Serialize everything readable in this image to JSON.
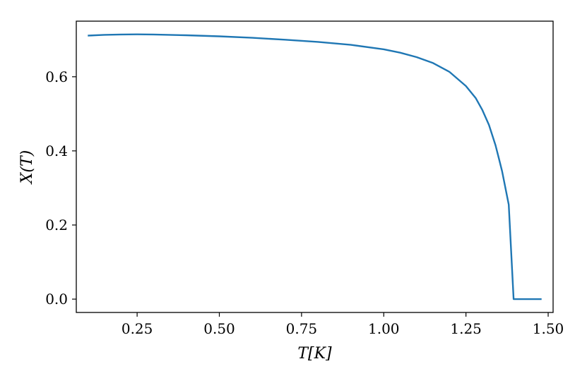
{
  "chart_data": {
    "type": "line",
    "title": "",
    "xlabel": "T[K]",
    "ylabel": "X(T)",
    "xlim": [
      0.065,
      1.515
    ],
    "ylim": [
      -0.036,
      0.75
    ],
    "xticks": [
      0.25,
      0.5,
      0.75,
      1.0,
      1.25,
      1.5
    ],
    "xtick_labels": [
      "0.25",
      "0.50",
      "0.75",
      "1.00",
      "1.25",
      "1.50"
    ],
    "yticks": [
      0.0,
      0.2,
      0.4,
      0.6
    ],
    "ytick_labels": [
      "0.0",
      "0.2",
      "0.4",
      "0.6"
    ],
    "grid": false,
    "legend": false,
    "series": [
      {
        "color": "#1f77b4",
        "x": [
          0.1,
          0.15,
          0.2,
          0.25,
          0.3,
          0.4,
          0.5,
          0.6,
          0.7,
          0.8,
          0.9,
          1.0,
          1.05,
          1.1,
          1.15,
          1.2,
          1.25,
          1.28,
          1.3,
          1.32,
          1.34,
          1.35,
          1.36,
          1.37,
          1.38,
          1.395,
          1.42,
          1.45,
          1.48
        ],
        "y": [
          0.711,
          0.713,
          0.714,
          0.7145,
          0.714,
          0.712,
          0.709,
          0.705,
          0.7,
          0.694,
          0.686,
          0.674,
          0.665,
          0.653,
          0.637,
          0.613,
          0.575,
          0.542,
          0.51,
          0.47,
          0.415,
          0.38,
          0.345,
          0.3,
          0.255,
          0.0,
          0.0,
          0.0,
          0.0
        ]
      }
    ]
  }
}
